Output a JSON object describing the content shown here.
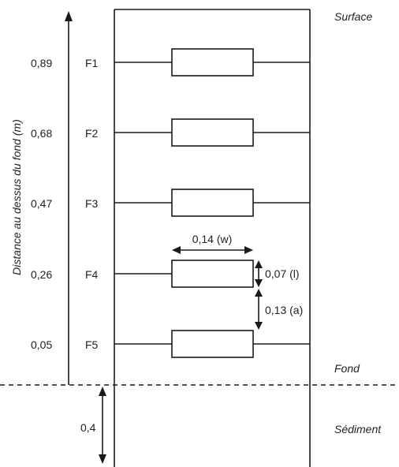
{
  "axis": {
    "label": "Distance au dessus du fond (m)"
  },
  "zones": {
    "surface": "Surface",
    "fond": "Fond",
    "sediment": "Sédiment"
  },
  "levels": [
    {
      "height": "0,89",
      "name": "F1"
    },
    {
      "height": "0,68",
      "name": "F2"
    },
    {
      "height": "0,47",
      "name": "F3"
    },
    {
      "height": "0,26",
      "name": "F4"
    },
    {
      "height": "0,05",
      "name": "F5"
    }
  ],
  "dimensions": {
    "width": "0,14 (w)",
    "length": "0,07 (l)",
    "spacing": "0,13 (a)",
    "sediment_depth": "0,4"
  }
}
